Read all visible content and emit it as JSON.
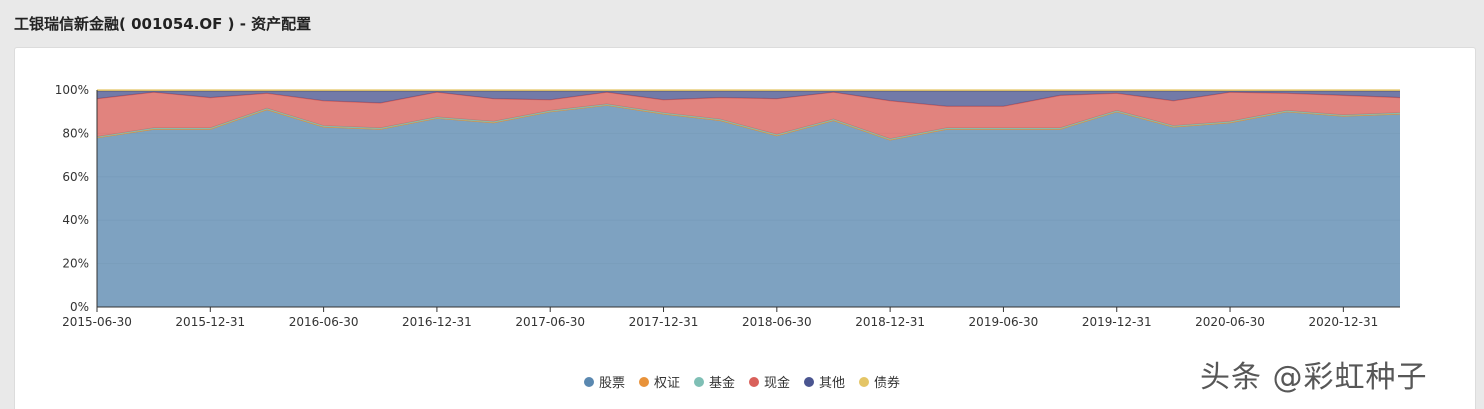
{
  "header": {
    "title": "工银瑞信新金融( 001054.OF ) - 资产配置"
  },
  "watermark": "头条 @彩虹种子",
  "chart_data": {
    "type": "area",
    "stacked": true,
    "title": "",
    "xlabel": "",
    "ylabel": "",
    "ylim": [
      0,
      100
    ],
    "y_ticks": [
      "0%",
      "20%",
      "40%",
      "60%",
      "80%",
      "100%"
    ],
    "x_ticks": [
      "2015-06-30",
      "2015-12-31",
      "2016-06-30",
      "2016-12-31",
      "2017-06-30",
      "2017-12-31",
      "2018-06-30",
      "2018-12-31",
      "2019-06-30",
      "2019-12-31",
      "2020-06-30",
      "2020-12-31"
    ],
    "x": [
      "2015-06-30",
      "2015-09-30",
      "2015-12-31",
      "2016-03-31",
      "2016-06-30",
      "2016-09-30",
      "2016-12-31",
      "2017-03-31",
      "2017-06-30",
      "2017-09-30",
      "2017-12-31",
      "2018-03-31",
      "2018-06-30",
      "2018-09-30",
      "2018-12-31",
      "2019-03-31",
      "2019-06-30",
      "2019-09-30",
      "2019-12-31",
      "2020-03-31",
      "2020-06-30",
      "2020-09-30",
      "2020-12-31",
      "2021-03-31"
    ],
    "grid": true,
    "legend_position": "bottom",
    "series": [
      {
        "name": "股票",
        "color": "#5a88b0",
        "values": [
          78,
          82,
          82,
          91,
          83,
          82,
          87,
          85,
          90,
          93,
          89,
          86,
          79,
          86,
          77,
          82,
          82,
          82,
          90,
          83,
          85,
          90,
          88,
          89
        ]
      },
      {
        "name": "权证",
        "color": "#e8923a",
        "values": [
          0,
          0,
          0,
          0,
          0,
          0,
          0,
          0,
          0,
          0,
          0,
          0,
          0,
          0,
          0,
          0,
          0,
          0,
          0,
          0,
          0,
          0,
          0,
          0
        ]
      },
      {
        "name": "基金",
        "color": "#7fbfb5",
        "values": [
          0.5,
          0.5,
          0.5,
          0.5,
          0.5,
          0.5,
          0.5,
          0.5,
          0.5,
          0.5,
          0.5,
          0.5,
          0.5,
          0.5,
          0.5,
          0.5,
          0.5,
          0.5,
          0.5,
          0.5,
          0.5,
          0.5,
          0.5,
          0.5
        ]
      },
      {
        "name": "现金",
        "color": "#d9605a",
        "values": [
          17.5,
          16.5,
          14,
          7,
          11.5,
          11.5,
          11.5,
          10.5,
          5,
          5.5,
          6,
          10,
          16.5,
          12.5,
          17.5,
          10,
          10,
          15,
          8,
          11.5,
          13.5,
          8,
          9,
          7
        ]
      },
      {
        "name": "其他",
        "color": "#4a5590",
        "values": [
          3.5,
          0.5,
          3,
          1,
          4.5,
          5.5,
          0.5,
          3.5,
          4,
          0.5,
          4,
          3,
          3.5,
          0.5,
          4.5,
          7,
          7,
          2,
          1,
          4.5,
          0.5,
          1,
          2,
          3
        ]
      },
      {
        "name": "债券",
        "color": "#e4c566",
        "values": [
          0.5,
          0.5,
          0.5,
          0.5,
          0.5,
          0.5,
          0.5,
          0.5,
          0.5,
          0.5,
          0.5,
          0.5,
          0.5,
          0.5,
          0.5,
          0.5,
          0.5,
          0.5,
          0.5,
          0.5,
          0.5,
          0.5,
          0.5,
          0.5
        ]
      }
    ]
  }
}
